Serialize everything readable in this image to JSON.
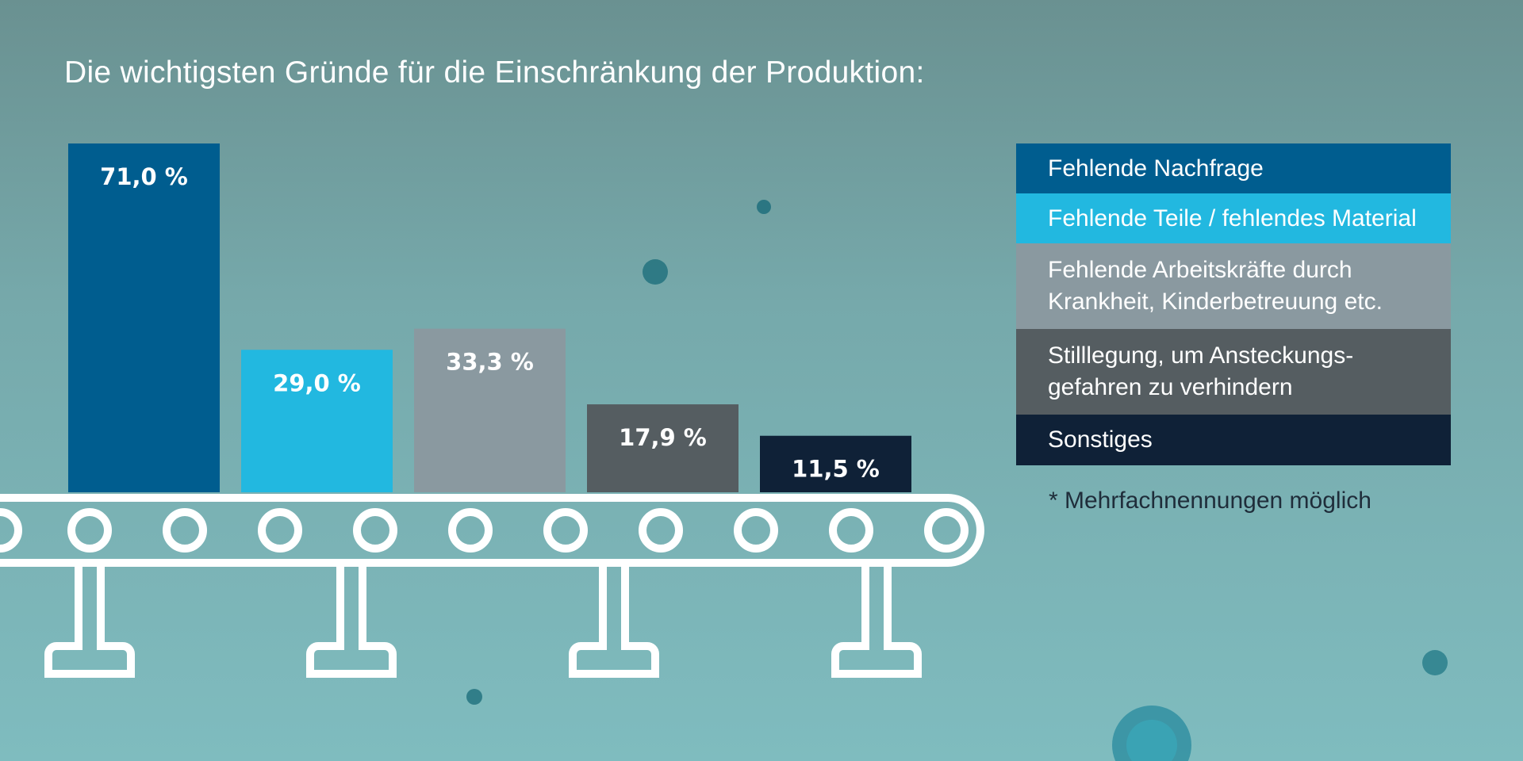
{
  "chart_data": {
    "type": "bar",
    "title": "Die wichtigsten Gründe für die Einschränkung der Produktion:",
    "categories": [
      "Fehlende Nachfrage",
      "Fehlende Teile / fehlendes Material",
      "Fehlende Arbeitskräfte durch Krankheit, Kinderbetreuung etc.",
      "Stilllegung, um Ansteckungs-gefahren zu verhindern",
      "Sonstiges"
    ],
    "values": [
      71.0,
      29.0,
      33.3,
      17.9,
      11.5
    ],
    "value_labels": [
      "71,0 %",
      "29,0 %",
      "33,3 %",
      "17,9 %",
      "11,5 %"
    ],
    "colors": [
      "#005d8f",
      "#22b8e0",
      "#8a99a0",
      "#555d61",
      "#0f2137"
    ],
    "ylim": [
      0,
      71
    ],
    "xlabel": "",
    "ylabel": "",
    "legend_position": "right",
    "grid": false
  },
  "legend": {
    "items": [
      {
        "text": "Fehlende Nachfrage",
        "color": "#005d8f"
      },
      {
        "text": "Fehlende Teile / fehlendes Material",
        "color": "#22b8e0"
      },
      {
        "text": "Fehlende Arbeitskräfte durch Krankheit, Kinderbetreuung etc.",
        "color": "#8a99a0"
      },
      {
        "text": "Stilllegung, um Ansteckungs-gefahren zu verhindern",
        "color": "#555d61"
      },
      {
        "text": "Sonstiges",
        "color": "#0f2137"
      }
    ]
  },
  "footnote": "* Mehrfachnennungen möglich"
}
